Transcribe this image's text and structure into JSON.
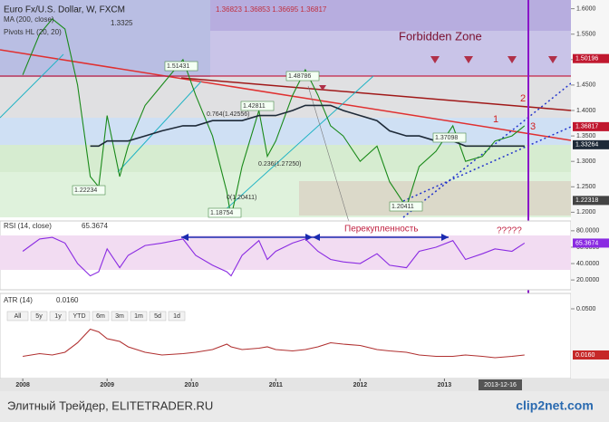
{
  "chart_data": [
    {
      "type": "line",
      "title": "Euro Fx/U.S. Dollar, W, FXCM",
      "xlim": [
        2007.73,
        2014.5
      ],
      "xticks": [
        2008,
        2009,
        2010,
        2011,
        2012,
        2013
      ],
      "ylim": [
        1.19,
        1.61
      ],
      "yticks": [
        {
          "value": 1.2,
          "label": "1.2000"
        },
        {
          "value": 1.25,
          "label": "1.2500"
        },
        {
          "value": 1.3,
          "label": "1.3000"
        },
        {
          "value": 1.35,
          "label": "1.3500"
        },
        {
          "value": 1.4,
          "label": "1.4000"
        },
        {
          "value": 1.45,
          "label": "1.4500"
        },
        {
          "value": 1.5,
          "label": "1.5000"
        },
        {
          "value": 1.55,
          "label": "1.5500"
        },
        {
          "value": 1.6,
          "label": "1.6000"
        }
      ],
      "x": [
        2008.0,
        2008.2,
        2008.35,
        2008.5,
        2008.65,
        2008.8,
        2008.9,
        2009.0,
        2009.15,
        2009.25,
        2009.45,
        2009.65,
        2009.9,
        2010.05,
        2010.25,
        2010.42,
        2010.47,
        2010.6,
        2010.8,
        2010.9,
        2011.0,
        2011.2,
        2011.35,
        2011.5,
        2011.65,
        2011.8,
        2012.0,
        2012.2,
        2012.35,
        2012.55,
        2012.7,
        2012.9,
        2013.1,
        2013.25,
        2013.45,
        2013.6,
        2013.8,
        2013.95
      ],
      "series": [
        {
          "color": "#1a8a1a",
          "values": [
            1.47,
            1.55,
            1.58,
            1.56,
            1.45,
            1.27,
            1.25,
            1.39,
            1.27,
            1.33,
            1.41,
            1.45,
            1.5,
            1.43,
            1.35,
            1.24,
            1.19,
            1.29,
            1.4,
            1.31,
            1.34,
            1.43,
            1.48,
            1.43,
            1.37,
            1.35,
            1.3,
            1.33,
            1.26,
            1.21,
            1.29,
            1.32,
            1.37,
            1.3,
            1.31,
            1.34,
            1.35,
            1.37
          ]
        },
        {
          "name": "MA (200, close)",
          "color": "#1e2a38",
          "values": [
            null,
            null,
            null,
            null,
            null,
            1.33,
            1.33,
            1.34,
            1.34,
            1.34,
            1.35,
            1.36,
            1.37,
            1.37,
            1.38,
            1.38,
            1.38,
            1.38,
            1.39,
            1.39,
            1.39,
            1.4,
            1.41,
            1.41,
            1.41,
            1.4,
            1.39,
            1.38,
            1.36,
            1.35,
            1.35,
            1.34,
            1.34,
            1.33,
            1.33,
            1.33,
            1.33,
            1.33
          ]
        }
      ],
      "price_markers": [
        {
          "value": 1.50196,
          "label": "1.50196"
        },
        {
          "value": 1.36817,
          "label": "1.36817"
        },
        {
          "value": 1.33264,
          "label": "1.33264"
        },
        {
          "value": 1.22318,
          "label": "1.22318"
        }
      ],
      "annotations": [
        "1.36823 1.36853 1.36695 1.36817",
        "1.3325",
        "Pivots HL (20, 20)",
        "Forbidden Zone",
        "1.51431",
        "1.48786",
        "1.42811",
        "0.764(1.42556)",
        "0.236(1.27250)",
        "0(1.20411)",
        "1.37098",
        "1.22234",
        "1.18754",
        "1.20411",
        "1",
        "2",
        "3"
      ]
    },
    {
      "type": "line",
      "title": "RSI (14, close)",
      "last_label": "65.3674",
      "ylim": [
        8,
        92
      ],
      "yticks": [
        {
          "value": 20,
          "label": "20.0000"
        },
        {
          "value": 40,
          "label": "40.0000"
        },
        {
          "value": 60,
          "label": "60.0000"
        },
        {
          "value": 80,
          "label": "80.0000"
        }
      ],
      "series": [
        {
          "color": "#8a2be2",
          "values": [
            55,
            70,
            72,
            65,
            40,
            25,
            30,
            58,
            35,
            50,
            62,
            65,
            70,
            50,
            38,
            30,
            25,
            50,
            68,
            45,
            55,
            65,
            70,
            55,
            45,
            42,
            40,
            52,
            38,
            35,
            55,
            60,
            68,
            45,
            52,
            58,
            55,
            65
          ]
        }
      ],
      "annotations": [
        "Перекупленность",
        "?????"
      ]
    },
    {
      "type": "line",
      "title": "ATR (14)",
      "last_label": "0.0160",
      "ylim": [
        0,
        0.06
      ],
      "yticks": [
        {
          "value": 0.05,
          "label": "0.0500"
        }
      ],
      "series": [
        {
          "color": "#b03030",
          "values": [
            0.015,
            0.017,
            0.016,
            0.018,
            0.025,
            0.035,
            0.033,
            0.028,
            0.026,
            0.022,
            0.018,
            0.016,
            0.017,
            0.018,
            0.02,
            0.024,
            0.022,
            0.02,
            0.021,
            0.022,
            0.02,
            0.019,
            0.02,
            0.022,
            0.025,
            0.024,
            0.023,
            0.02,
            0.019,
            0.018,
            0.016,
            0.015,
            0.015,
            0.016,
            0.015,
            0.014,
            0.015,
            0.016
          ]
        }
      ],
      "range_buttons": [
        "All",
        "5y",
        "1y",
        "YTD",
        "6m",
        "3m",
        "1m",
        "5d",
        "1d"
      ]
    }
  ],
  "footer": {
    "caption": "Элитный Трейдер, ELITETRADER.RU",
    "brand": "clip2net.com",
    "date": "2013-12-16"
  }
}
